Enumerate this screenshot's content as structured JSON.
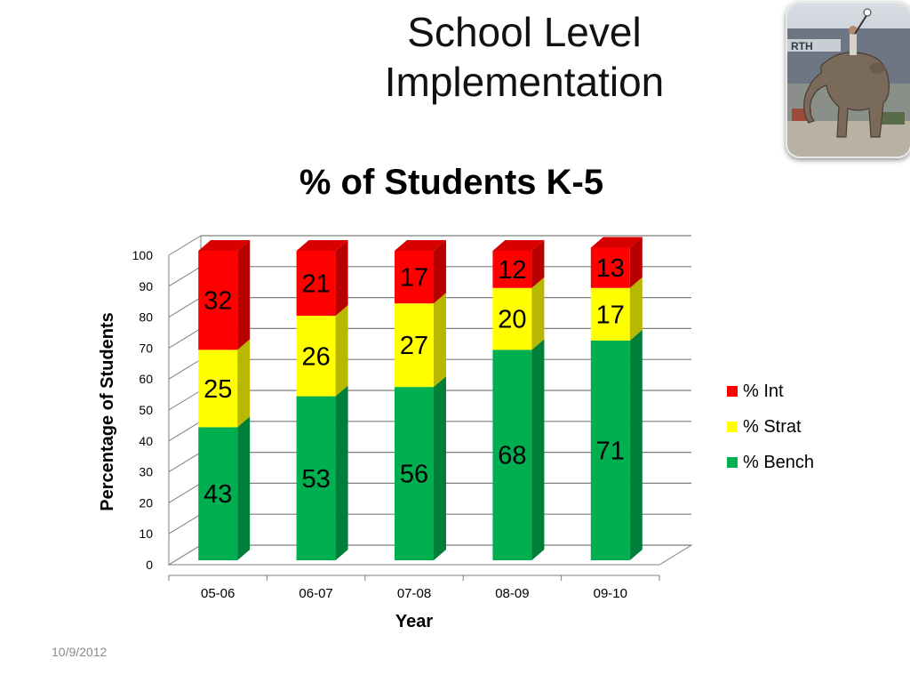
{
  "slide": {
    "title_line1": "School Level",
    "title_line2": "Implementation",
    "date": "10/9/2012"
  },
  "photo": {
    "icon": "elephant-circus-photo"
  },
  "chart_data": {
    "type": "bar",
    "stacked": true,
    "style": "3d-column",
    "title": "% of Students K-5",
    "xlabel": "Year",
    "ylabel": "Percentage of Students",
    "ylim": [
      0,
      100
    ],
    "yticks": [
      0,
      10,
      20,
      30,
      40,
      50,
      60,
      70,
      80,
      90,
      100
    ],
    "grid": true,
    "legend_position": "right",
    "categories": [
      "05-06",
      "06-07",
      "07-08",
      "08-09",
      "09-10"
    ],
    "series": [
      {
        "name": "% Bench",
        "color": "#00b050",
        "values": [
          43,
          53,
          56,
          68,
          71
        ]
      },
      {
        "name": "% Strat",
        "color": "#ffff00",
        "values": [
          25,
          26,
          27,
          20,
          17
        ]
      },
      {
        "name": "% Int",
        "color": "#ff0000",
        "values": [
          32,
          21,
          17,
          12,
          13
        ]
      }
    ],
    "legend_order": [
      "% Int",
      "% Strat",
      "% Bench"
    ]
  }
}
